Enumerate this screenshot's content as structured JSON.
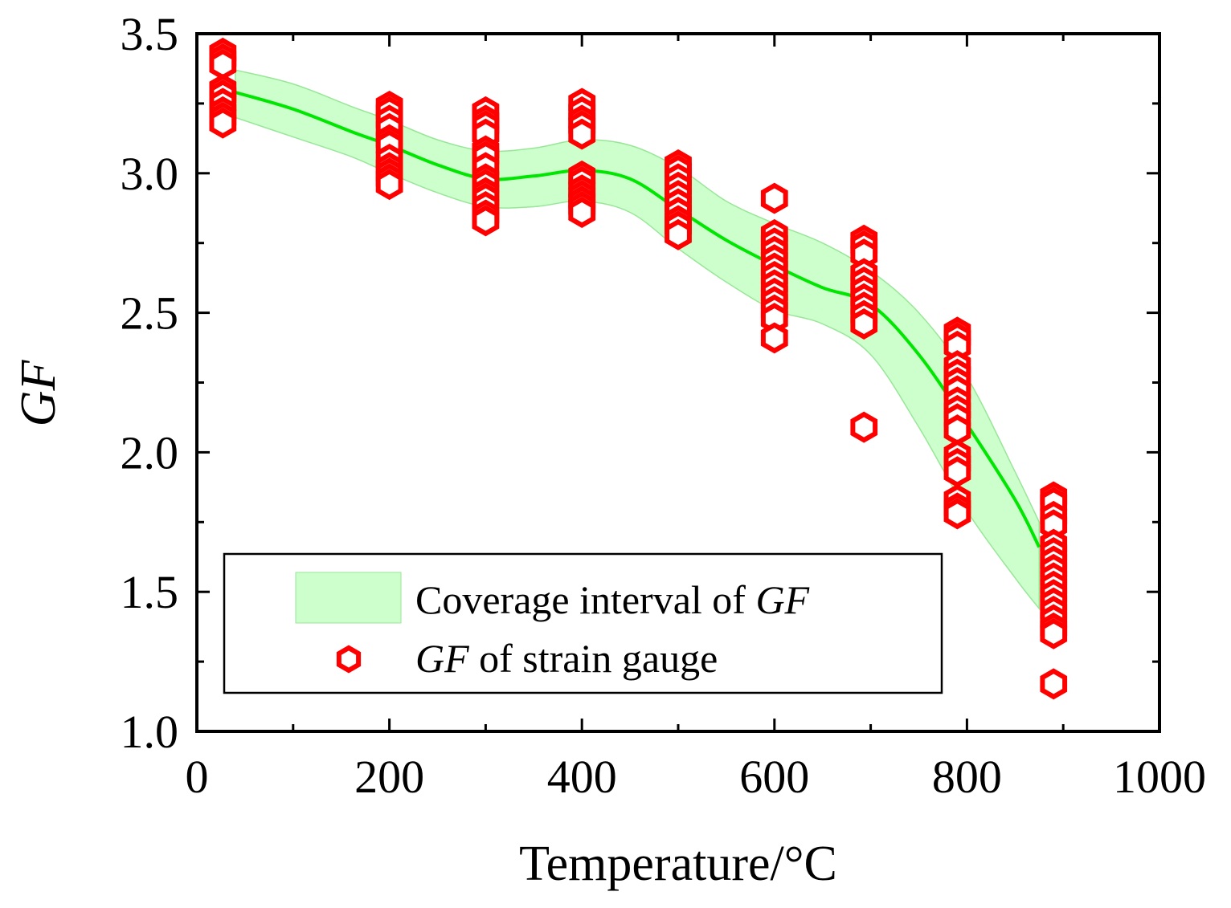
{
  "chart_data": {
    "type": "scatter",
    "title": "",
    "xlabel": "Temperature/°C",
    "ylabel": "GF",
    "xlim": [
      0,
      1000
    ],
    "ylim": [
      1.0,
      3.5
    ],
    "xticks": [
      0,
      200,
      400,
      600,
      800,
      1000
    ],
    "xtick_labels": [
      "0",
      "200",
      "400",
      "600",
      "800",
      "1000"
    ],
    "yticks": [
      1.0,
      1.5,
      2.0,
      2.5,
      3.0,
      3.5
    ],
    "ytick_labels": [
      "1.0",
      "1.5",
      "2.0",
      "2.5",
      "3.0",
      "3.5"
    ],
    "colors": {
      "band": "#ccffcc",
      "band_edge": "#99e699",
      "line": "#00e600",
      "marker": "#ff0000",
      "axis": "#000000"
    },
    "legend": {
      "position": "lower-left",
      "band_label_prefix": "Coverage interval of ",
      "band_label_italic": "GF",
      "marker_label_italic": "GF",
      "marker_label_suffix": " of strain gauge"
    },
    "series": [
      {
        "name": "Coverage interval of GF",
        "kind": "band",
        "x": [
          40,
          100,
          160,
          200,
          250,
          300,
          350,
          400,
          450,
          500,
          550,
          600,
          650,
          700,
          750,
          800,
          850,
          875
        ],
        "lower": [
          3.2,
          3.13,
          3.06,
          3.0,
          2.93,
          2.88,
          2.88,
          2.9,
          2.86,
          2.73,
          2.61,
          2.51,
          2.46,
          2.35,
          2.09,
          1.79,
          1.55,
          1.44
        ],
        "upper": [
          3.37,
          3.32,
          3.24,
          3.19,
          3.12,
          3.08,
          3.09,
          3.12,
          3.1,
          3.02,
          2.9,
          2.82,
          2.75,
          2.65,
          2.5,
          2.27,
          1.93,
          1.75
        ],
        "center": [
          3.29,
          3.23,
          3.15,
          3.1,
          3.03,
          2.98,
          2.99,
          3.01,
          2.98,
          2.87,
          2.76,
          2.67,
          2.59,
          2.53,
          2.35,
          2.1,
          1.83,
          1.66
        ]
      },
      {
        "name": "GF of strain gauge",
        "kind": "scatter",
        "points": [
          {
            "x": 27,
            "y": 3.43
          },
          {
            "x": 27,
            "y": 3.41
          },
          {
            "x": 27,
            "y": 3.39
          },
          {
            "x": 27,
            "y": 3.3
          },
          {
            "x": 27,
            "y": 3.28
          },
          {
            "x": 27,
            "y": 3.25
          },
          {
            "x": 27,
            "y": 3.22
          },
          {
            "x": 27,
            "y": 3.2
          },
          {
            "x": 27,
            "y": 3.18
          },
          {
            "x": 200,
            "y": 3.24
          },
          {
            "x": 200,
            "y": 3.22
          },
          {
            "x": 200,
            "y": 3.19
          },
          {
            "x": 200,
            "y": 3.16
          },
          {
            "x": 200,
            "y": 3.12
          },
          {
            "x": 200,
            "y": 3.1
          },
          {
            "x": 200,
            "y": 3.05
          },
          {
            "x": 200,
            "y": 3.02
          },
          {
            "x": 200,
            "y": 3.0
          },
          {
            "x": 200,
            "y": 2.98
          },
          {
            "x": 200,
            "y": 2.96
          },
          {
            "x": 300,
            "y": 3.22
          },
          {
            "x": 300,
            "y": 3.19
          },
          {
            "x": 300,
            "y": 3.17
          },
          {
            "x": 300,
            "y": 3.14
          },
          {
            "x": 300,
            "y": 3.08
          },
          {
            "x": 300,
            "y": 3.06
          },
          {
            "x": 300,
            "y": 3.02
          },
          {
            "x": 300,
            "y": 2.98
          },
          {
            "x": 300,
            "y": 2.96
          },
          {
            "x": 300,
            "y": 2.93
          },
          {
            "x": 300,
            "y": 2.91
          },
          {
            "x": 300,
            "y": 2.88
          },
          {
            "x": 300,
            "y": 2.85
          },
          {
            "x": 300,
            "y": 2.83
          },
          {
            "x": 400,
            "y": 3.25
          },
          {
            "x": 400,
            "y": 3.22
          },
          {
            "x": 400,
            "y": 3.19
          },
          {
            "x": 400,
            "y": 3.17
          },
          {
            "x": 400,
            "y": 3.14
          },
          {
            "x": 400,
            "y": 2.99
          },
          {
            "x": 400,
            "y": 2.97
          },
          {
            "x": 400,
            "y": 2.94
          },
          {
            "x": 400,
            "y": 2.92
          },
          {
            "x": 400,
            "y": 2.9
          },
          {
            "x": 400,
            "y": 2.88
          },
          {
            "x": 400,
            "y": 2.86
          },
          {
            "x": 500,
            "y": 3.03
          },
          {
            "x": 500,
            "y": 3.01
          },
          {
            "x": 500,
            "y": 2.98
          },
          {
            "x": 500,
            "y": 2.95
          },
          {
            "x": 500,
            "y": 2.92
          },
          {
            "x": 500,
            "y": 2.89
          },
          {
            "x": 500,
            "y": 2.86
          },
          {
            "x": 500,
            "y": 2.83
          },
          {
            "x": 500,
            "y": 2.81
          },
          {
            "x": 500,
            "y": 2.78
          },
          {
            "x": 600,
            "y": 2.91
          },
          {
            "x": 600,
            "y": 2.78
          },
          {
            "x": 600,
            "y": 2.75
          },
          {
            "x": 600,
            "y": 2.72
          },
          {
            "x": 600,
            "y": 2.69
          },
          {
            "x": 600,
            "y": 2.66
          },
          {
            "x": 600,
            "y": 2.63
          },
          {
            "x": 600,
            "y": 2.6
          },
          {
            "x": 600,
            "y": 2.57
          },
          {
            "x": 600,
            "y": 2.54
          },
          {
            "x": 600,
            "y": 2.51
          },
          {
            "x": 600,
            "y": 2.48
          },
          {
            "x": 600,
            "y": 2.41
          },
          {
            "x": 693,
            "y": 2.76
          },
          {
            "x": 693,
            "y": 2.74
          },
          {
            "x": 693,
            "y": 2.71
          },
          {
            "x": 693,
            "y": 2.64
          },
          {
            "x": 693,
            "y": 2.61
          },
          {
            "x": 693,
            "y": 2.58
          },
          {
            "x": 693,
            "y": 2.55
          },
          {
            "x": 693,
            "y": 2.52
          },
          {
            "x": 693,
            "y": 2.49
          },
          {
            "x": 693,
            "y": 2.46
          },
          {
            "x": 693,
            "y": 2.09
          },
          {
            "x": 790,
            "y": 2.43
          },
          {
            "x": 790,
            "y": 2.41
          },
          {
            "x": 790,
            "y": 2.38
          },
          {
            "x": 790,
            "y": 2.31
          },
          {
            "x": 790,
            "y": 2.28
          },
          {
            "x": 790,
            "y": 2.25
          },
          {
            "x": 790,
            "y": 2.22
          },
          {
            "x": 790,
            "y": 2.18
          },
          {
            "x": 790,
            "y": 2.15
          },
          {
            "x": 790,
            "y": 2.12
          },
          {
            "x": 790,
            "y": 2.08
          },
          {
            "x": 790,
            "y": 1.99
          },
          {
            "x": 790,
            "y": 1.96
          },
          {
            "x": 790,
            "y": 1.93
          },
          {
            "x": 790,
            "y": 1.83
          },
          {
            "x": 790,
            "y": 1.8
          },
          {
            "x": 790,
            "y": 1.78
          },
          {
            "x": 890,
            "y": 1.84
          },
          {
            "x": 890,
            "y": 1.82
          },
          {
            "x": 890,
            "y": 1.77
          },
          {
            "x": 890,
            "y": 1.74
          },
          {
            "x": 890,
            "y": 1.67
          },
          {
            "x": 890,
            "y": 1.64
          },
          {
            "x": 890,
            "y": 1.61
          },
          {
            "x": 890,
            "y": 1.58
          },
          {
            "x": 890,
            "y": 1.55
          },
          {
            "x": 890,
            "y": 1.52
          },
          {
            "x": 890,
            "y": 1.49
          },
          {
            "x": 890,
            "y": 1.46
          },
          {
            "x": 890,
            "y": 1.43
          },
          {
            "x": 890,
            "y": 1.4
          },
          {
            "x": 890,
            "y": 1.37
          },
          {
            "x": 890,
            "y": 1.35
          },
          {
            "x": 890,
            "y": 1.17
          }
        ]
      }
    ]
  }
}
